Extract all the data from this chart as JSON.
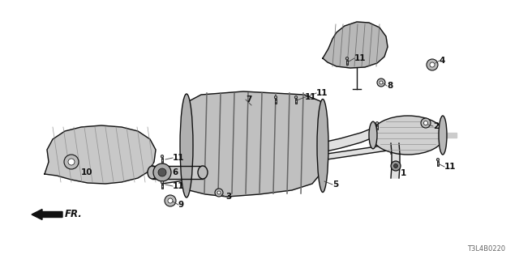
{
  "bg_color": "#ffffff",
  "line_color": "#111111",
  "part_code": "T3L4B0220",
  "fig_w": 6.4,
  "fig_h": 3.2,
  "dpi": 100
}
